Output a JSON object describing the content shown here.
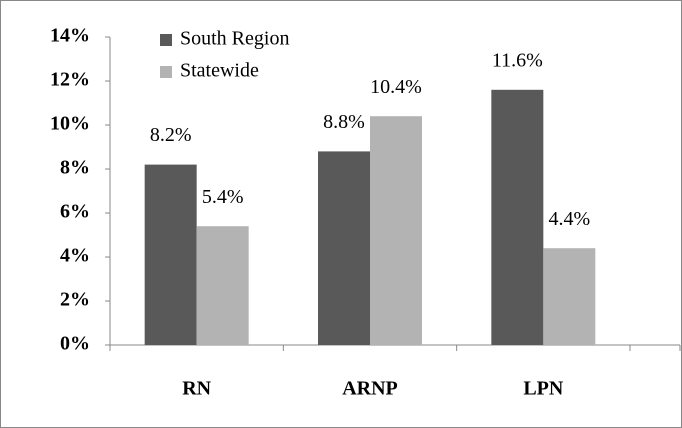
{
  "chart_data": {
    "type": "bar",
    "categories": [
      "RN",
      "ARNP",
      "LPN"
    ],
    "series": [
      {
        "name": "South Region",
        "color": "#595959",
        "values": [
          8.2,
          8.8,
          11.6
        ],
        "value_labels": [
          "8.2%",
          "8.8%",
          "11.6%"
        ]
      },
      {
        "name": "Statewide",
        "color": "#b3b3b3",
        "values": [
          5.4,
          10.4,
          4.4
        ],
        "value_labels": [
          "5.4%",
          "10.4%",
          "4.4%"
        ]
      }
    ],
    "ylim": [
      0,
      14
    ],
    "yticks": [
      {
        "value": 0,
        "label": "0%"
      },
      {
        "value": 2,
        "label": "2%"
      },
      {
        "value": 4,
        "label": "4%"
      },
      {
        "value": 6,
        "label": "6%"
      },
      {
        "value": 8,
        "label": "8%"
      },
      {
        "value": 10,
        "label": "10%"
      },
      {
        "value": 12,
        "label": "12%"
      },
      {
        "value": 14,
        "label": "14%"
      }
    ],
    "legend": "top-left"
  }
}
